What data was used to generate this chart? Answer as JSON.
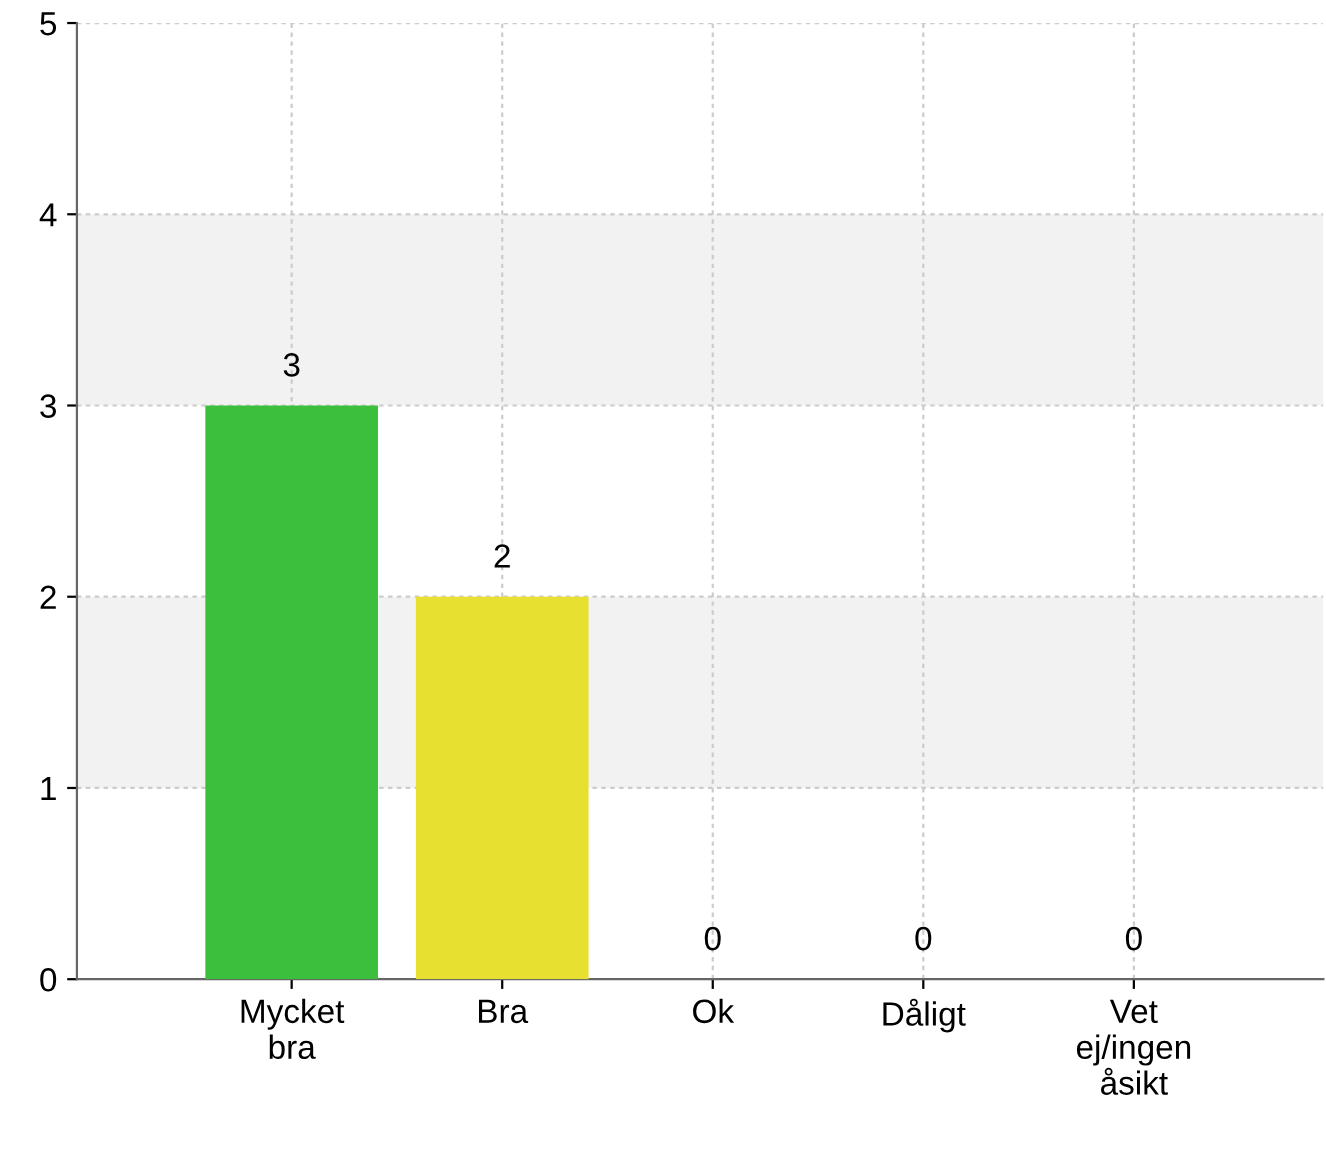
{
  "chart_data": {
    "type": "bar",
    "categories": [
      "Mycket\nbra",
      "Bra",
      "Ok",
      "Dåligt",
      "Vet\nej/ingen\nåsikt"
    ],
    "values": [
      3,
      2,
      0,
      0,
      0
    ],
    "colors": [
      "#3cbf3c",
      "#e8e030",
      "#888888",
      "#888888",
      "#888888"
    ],
    "ylim": [
      0,
      5
    ],
    "yticks": [
      0,
      1,
      2,
      3,
      4,
      5
    ],
    "grid": true,
    "data_labels": true,
    "bands": [
      {
        "axis": "y",
        "from": 1,
        "to": 2,
        "color": "#f2f2f2"
      },
      {
        "axis": "y",
        "from": 3,
        "to": 4,
        "color": "#f2f2f2"
      }
    ]
  }
}
